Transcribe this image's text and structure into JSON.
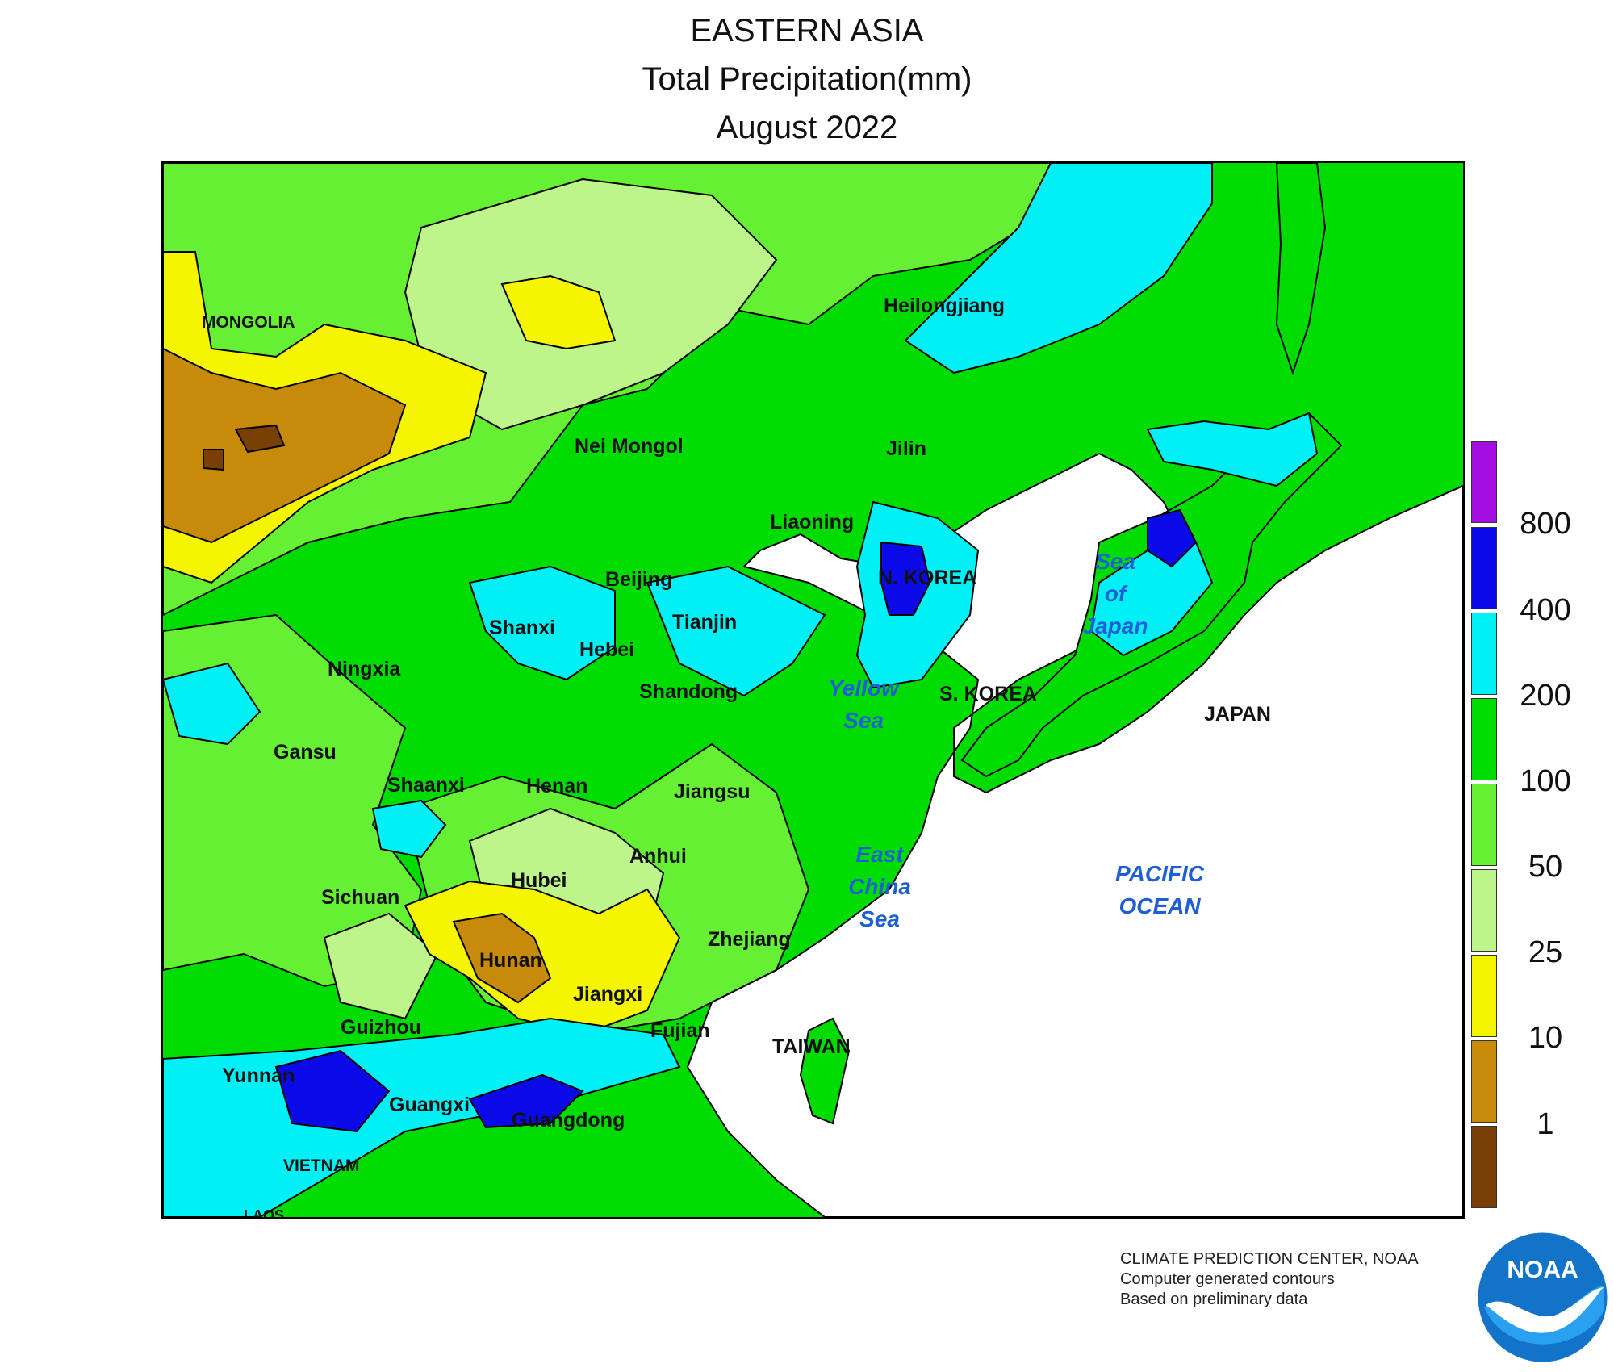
{
  "title": {
    "line1": "EASTERN ASIA",
    "line2": "Total Precipitation(mm)",
    "line3": "August 2022"
  },
  "legend": {
    "thresholds": [
      "800",
      "400",
      "200",
      "100",
      "50",
      "25",
      "10",
      "1"
    ],
    "colors": [
      "#a30fe0",
      "#0a0ae8",
      "#00f0f5",
      "#00dc00",
      "#66f033",
      "#bdf58a",
      "#f5f500",
      "#c78a0a",
      "#7a3f05"
    ]
  },
  "labels": {
    "mongolia": "MONGOLIA",
    "heilongjiang": "Heilongjiang",
    "nei_mongol": "Nei Mongol",
    "jilin": "Jilin",
    "liaoning": "Liaoning",
    "beijing": "Beijing",
    "tianjin": "Tianjin",
    "n_korea": "N. KOREA",
    "shanxi": "Shanxi",
    "hebei": "Hebei",
    "ningxia": "Ningxia",
    "shandong": "Shandong",
    "s_korea": "S. KOREA",
    "japan": "JAPAN",
    "gansu": "Gansu",
    "shaanxi": "Shaanxi",
    "henan": "Henan",
    "jiangsu": "Jiangsu",
    "anhui": "Anhui",
    "hubei": "Hubei",
    "sichuan": "Sichuan",
    "zhejiang": "Zhejiang",
    "hunan": "Hunan",
    "jiangxi": "Jiangxi",
    "guizhou": "Guizhou",
    "fujian": "Fujian",
    "taiwan": "TAIWAN",
    "yunnan": "Yunnan",
    "guangxi": "Guangxi",
    "guangdong": "Guangdong",
    "vietnam": "VIETNAM",
    "laos": "LAOS"
  },
  "seas": {
    "sea_of_japan": [
      "Sea",
      "of",
      "Japan"
    ],
    "yellow_sea": [
      "Yellow",
      "Sea"
    ],
    "east_china_sea": [
      "East",
      "China",
      "Sea"
    ],
    "pacific_ocean": [
      "PACIFIC",
      "OCEAN"
    ]
  },
  "credits": {
    "line1": "CLIMATE PREDICTION CENTER, NOAA",
    "line2": "Computer generated contours",
    "line3": "Based on preliminary data"
  },
  "logo": {
    "text": "NOAA",
    "icon": "noaa-logo-icon"
  }
}
